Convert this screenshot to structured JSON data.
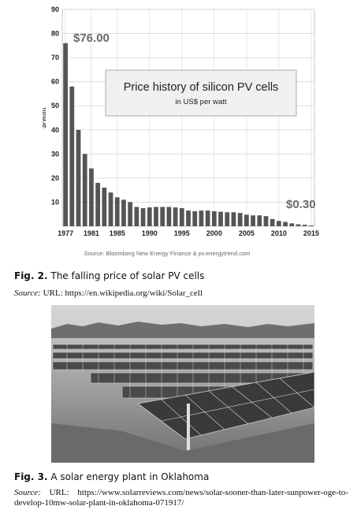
{
  "figure2": {
    "caption_label": "Fig. 2.",
    "caption_text": "The falling price of solar PV cells",
    "source_label": "Source:",
    "source_text": "URL: https://en.wikipedia.org/wiki/Solar_cell"
  },
  "figure3": {
    "caption_label": "Fig. 3.",
    "caption_text": "A solar energy plant in Oklahoma",
    "source_label": "Source:",
    "source_text": "URL:   https://www.solarreviews.com/news/solar-sooner-than-later-sunpower-oge-to-develop-10mw-solar-plant-in-oklahoma-071917/"
  },
  "chart_data": {
    "type": "bar",
    "title": "Price history of silicon PV cells",
    "subtitle": "in US$ per watt",
    "ylabel": "$/watt",
    "xlabel": "",
    "ylim": [
      0,
      90
    ],
    "yticks": [
      10,
      20,
      30,
      40,
      50,
      60,
      70,
      80,
      90
    ],
    "xticks": [
      1977,
      1981,
      1985,
      1990,
      1995,
      2000,
      2005,
      2010,
      2015
    ],
    "grid": true,
    "annotations": [
      {
        "text": "$76.00",
        "near_year": 1977
      },
      {
        "text": "$0.30",
        "near_year": 2015
      }
    ],
    "source": "Source: Bloomberg New Energy Finance & pv.energytrend.com",
    "bar_color": "#555555",
    "x": [
      1977,
      1978,
      1979,
      1980,
      1981,
      1982,
      1983,
      1984,
      1985,
      1986,
      1987,
      1988,
      1989,
      1990,
      1991,
      1992,
      1993,
      1994,
      1995,
      1996,
      1997,
      1998,
      1999,
      2000,
      2001,
      2002,
      2003,
      2004,
      2005,
      2006,
      2007,
      2008,
      2009,
      2010,
      2011,
      2012,
      2013,
      2014,
      2015
    ],
    "values": [
      76,
      58,
      40,
      30,
      24,
      18,
      16,
      14,
      12,
      11,
      10,
      8,
      7.5,
      7.8,
      8,
      8,
      8,
      7.8,
      7.5,
      6.5,
      6.2,
      6.5,
      6.5,
      6.2,
      6,
      5.8,
      5.8,
      5.5,
      4.8,
      4.5,
      4.5,
      4.2,
      3,
      2.2,
      1.8,
      1.2,
      0.8,
      0.6,
      0.3
    ]
  }
}
